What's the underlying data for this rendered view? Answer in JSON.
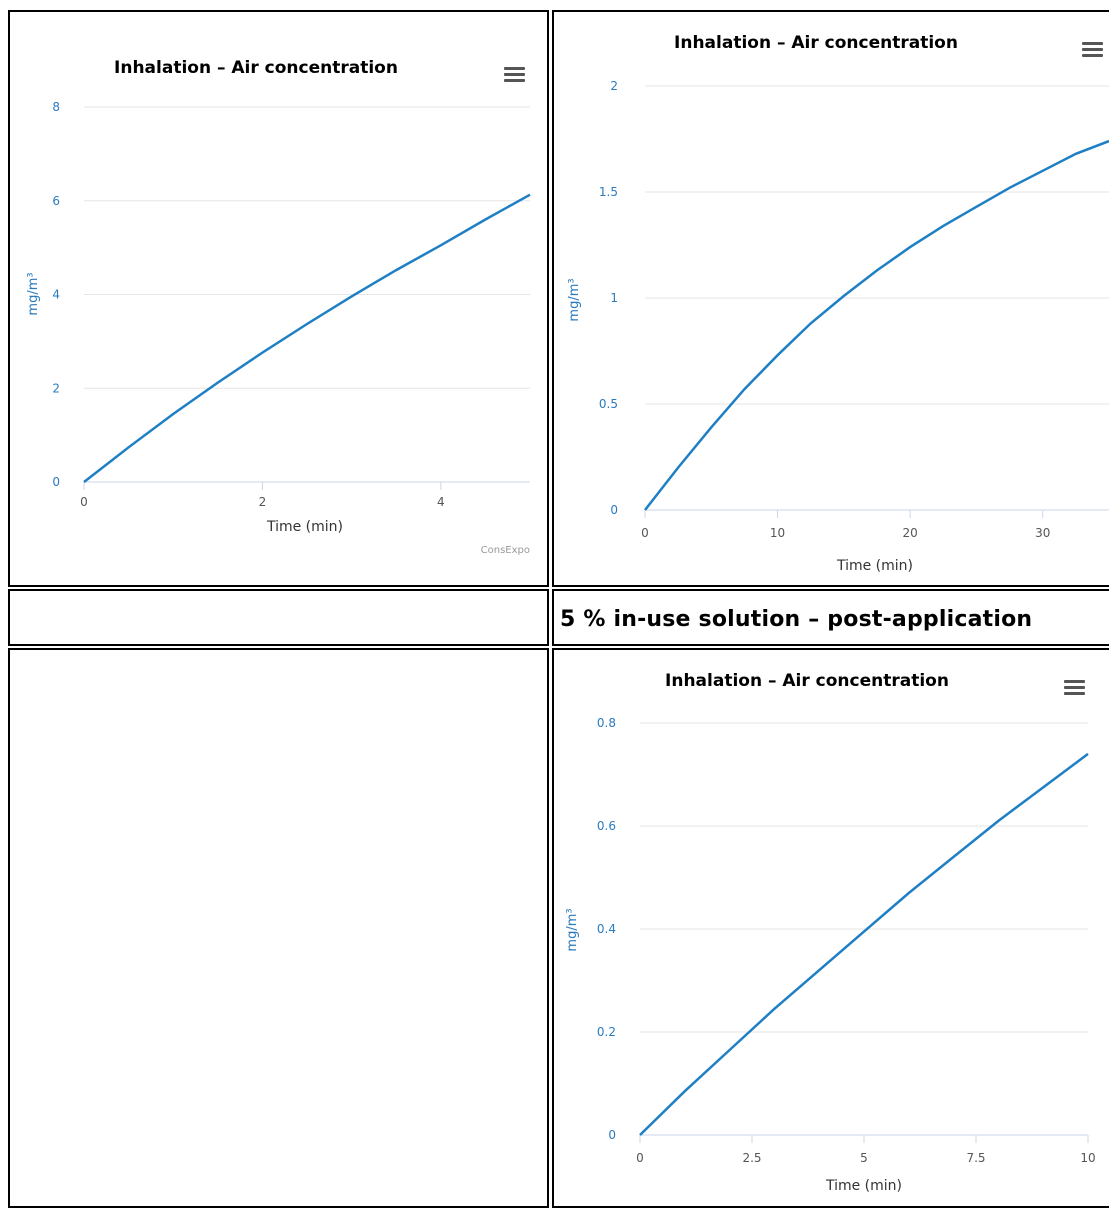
{
  "section_header": "5 % in-use solution – post-application",
  "charts": [
    {
      "title": "Inhalation – Air concentration",
      "ylabel": "mg/m³",
      "xlabel": "Time (min)",
      "yticks": [
        "0",
        "2",
        "4",
        "6",
        "8"
      ],
      "xticks": [
        "0",
        "2",
        "4"
      ],
      "credit": "ConsExpo"
    },
    {
      "title": "Inhalation – Air concentration",
      "ylabel": "mg/m³",
      "xlabel": "Time (min)",
      "yticks": [
        "0",
        "0.5",
        "1",
        "1.5",
        "2"
      ],
      "xticks": [
        "0",
        "10",
        "20",
        "30"
      ]
    },
    {
      "title": "Inhalation – Air concentration",
      "ylabel": "mg/m³",
      "xlabel": "Time (min)",
      "yticks": [
        "0",
        "0.2",
        "0.4",
        "0.6",
        "0.8"
      ],
      "xticks": [
        "0",
        "2.5",
        "5",
        "7.5",
        "10"
      ]
    }
  ],
  "colors": {
    "series": "#1f7fc4",
    "grid": "#e6e6e6",
    "axis": "#ccd6eb"
  },
  "chart_data": [
    {
      "type": "line",
      "title": "Inhalation – Air concentration",
      "xlabel": "Time (min)",
      "ylabel": "mg/m³",
      "xlim": [
        0,
        5
      ],
      "ylim": [
        0,
        8
      ],
      "series": [
        {
          "x": [
            0,
            0.5,
            1,
            1.5,
            2,
            2.5,
            3,
            3.5,
            4,
            4.5,
            5
          ],
          "values": [
            0,
            0.74,
            1.45,
            2.12,
            2.76,
            3.37,
            3.96,
            4.52,
            5.05,
            5.6,
            6.13
          ]
        }
      ]
    },
    {
      "type": "line",
      "title": "Inhalation – Air concentration",
      "xlabel": "Time (min)",
      "ylabel": "mg/m³",
      "xlim": [
        0,
        35
      ],
      "ylim": [
        0,
        2
      ],
      "series": [
        {
          "x": [
            0,
            2.5,
            5,
            7.5,
            10,
            12.5,
            15,
            17.5,
            20,
            22.5,
            25,
            27.5,
            30,
            32.5,
            35
          ],
          "values": [
            0,
            0.2,
            0.39,
            0.57,
            0.73,
            0.88,
            1.01,
            1.13,
            1.24,
            1.34,
            1.43,
            1.52,
            1.6,
            1.68,
            1.74
          ]
        }
      ]
    },
    {
      "type": "line",
      "title": "Inhalation – Air concentration",
      "xlabel": "Time (min)",
      "ylabel": "mg/m³",
      "xlim": [
        0,
        10
      ],
      "ylim": [
        0,
        0.8
      ],
      "series": [
        {
          "x": [
            0,
            1,
            2,
            3,
            4,
            5,
            6,
            7,
            8,
            9,
            10
          ],
          "values": [
            0,
            0.085,
            0.165,
            0.245,
            0.32,
            0.395,
            0.47,
            0.54,
            0.61,
            0.675,
            0.74
          ]
        }
      ]
    }
  ]
}
